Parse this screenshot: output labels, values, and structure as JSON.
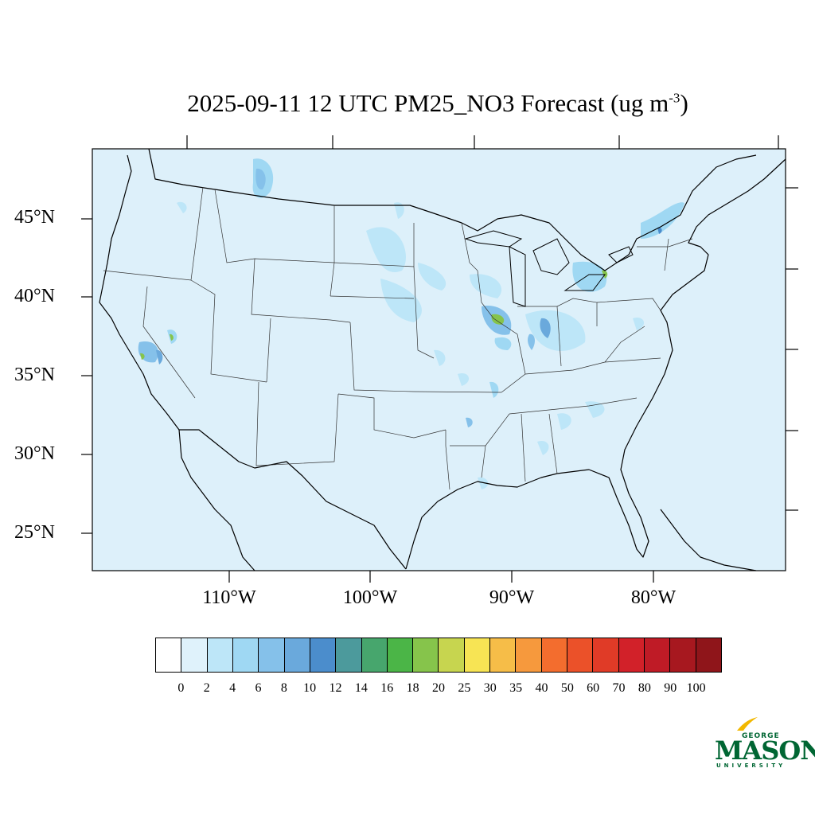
{
  "title": {
    "text": "2025-09-11 12 UTC PM25_NO3 Forecast (ug m",
    "superscript": "-3",
    "suffix": ")"
  },
  "map": {
    "background_color": "#ddf0fa",
    "lat_labels": [
      "45°N",
      "40°N",
      "35°N",
      "30°N",
      "25°N"
    ],
    "lon_labels": [
      "110°W",
      "100°W",
      "90°W",
      "80°W"
    ]
  },
  "colorbar": {
    "levels": [
      "0",
      "2",
      "4",
      "6",
      "8",
      "10",
      "12",
      "14",
      "16",
      "18",
      "20",
      "25",
      "30",
      "35",
      "40",
      "50",
      "60",
      "70",
      "80",
      "90",
      "100"
    ],
    "colors": [
      "#ffffff",
      "#dff2fb",
      "#bde6f8",
      "#9fd8f3",
      "#85c1ea",
      "#6aa9dc",
      "#4b8dcc",
      "#4c9a9c",
      "#47a66d",
      "#4bb547",
      "#86c44b",
      "#c7d54f",
      "#f7e454",
      "#f6bd48",
      "#f6993d",
      "#f36d2e",
      "#eb5129",
      "#e03b27",
      "#d22129",
      "#bf1b26",
      "#a7181f",
      "#8f151a"
    ]
  },
  "logo": {
    "line1": "GEORGE",
    "line2": "MASON",
    "line3": "UNIVERSITY",
    "color": "#006633",
    "accent": "#f2b800"
  }
}
